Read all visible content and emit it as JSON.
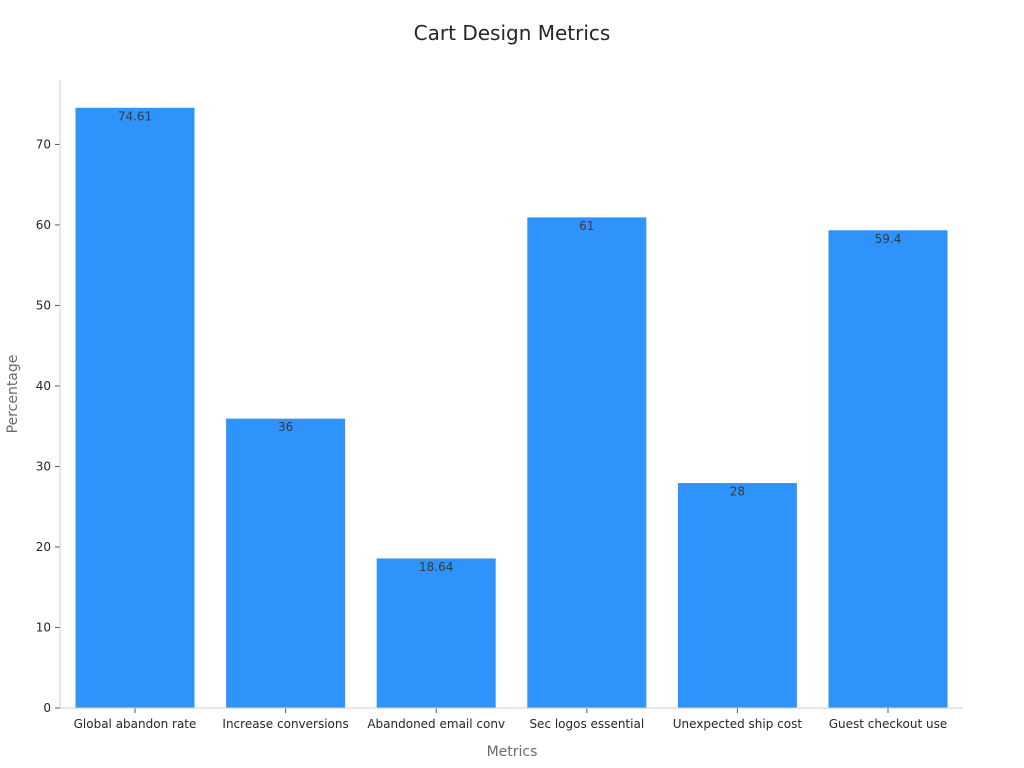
{
  "chart_data": {
    "type": "bar",
    "title": "Cart Design Metrics",
    "xlabel": "Metrics",
    "ylabel": "Percentage",
    "categories": [
      "Global abandon rate",
      "Increase conversions",
      "Abandoned email conv",
      "Sec logos essential",
      "Unexpected ship cost",
      "Guest checkout use"
    ],
    "values": [
      74.61,
      36,
      18.64,
      61,
      28,
      59.4
    ],
    "value_labels": [
      "74.61",
      "36",
      "18.64",
      "61",
      "28",
      "59.4"
    ],
    "ylim": [
      0,
      78
    ],
    "yticks": [
      0,
      10,
      20,
      30,
      40,
      50,
      60,
      70
    ],
    "grid": false,
    "legend": "none",
    "bar_color": "#2e93fa"
  }
}
